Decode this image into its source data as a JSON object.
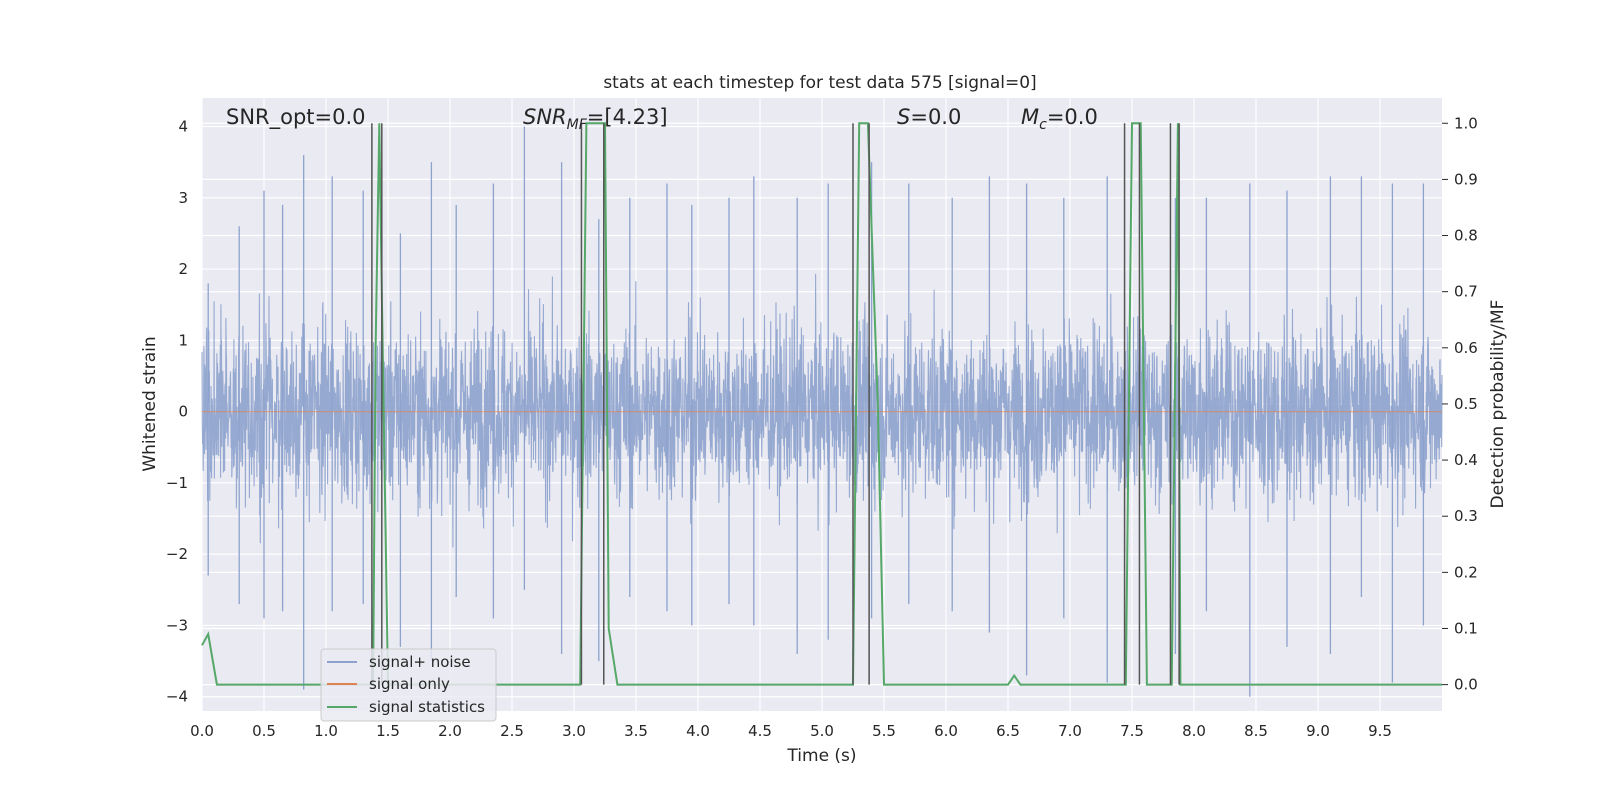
{
  "chart_data": {
    "type": "line",
    "title": "stats at each timestep for test data 575 [signal=0]",
    "xlabel": "Time (s)",
    "ylabel": "Whitened strain",
    "ylabel_right": "Detection probability/MF",
    "xlim": [
      0.0,
      10.0
    ],
    "ylim": [
      -4.2,
      4.4
    ],
    "ylim_right": [
      -0.047,
      1.045
    ],
    "x_ticks": [
      "0.0",
      "0.5",
      "1.0",
      "1.5",
      "2.0",
      "2.5",
      "3.0",
      "3.5",
      "4.0",
      "4.5",
      "5.0",
      "5.5",
      "6.0",
      "6.5",
      "7.0",
      "7.5",
      "8.0",
      "8.5",
      "9.0",
      "9.5"
    ],
    "y_ticks": [
      "4",
      "3",
      "2",
      "1",
      "0",
      "−1",
      "−2",
      "−3",
      "−4"
    ],
    "y_ticks_right": [
      "1.0",
      "0.9",
      "0.8",
      "0.7",
      "0.6",
      "0.5",
      "0.4",
      "0.3",
      "0.2",
      "0.1",
      "0.0"
    ],
    "grid": true,
    "legend_position": "lower-left",
    "annotations": {
      "snr_opt": "SNR_opt=0.0",
      "snr_mf_main": "SNR",
      "snr_mf_sub": "MF",
      "snr_mf_value": "=[4.23]",
      "s_main": "S",
      "s_value": "=0.0",
      "mc_main": "M",
      "mc_sub": "c",
      "mc_value": "=0.0"
    },
    "series": [
      {
        "name": "signal+ noise",
        "axis": "left",
        "color": "#8da2cd",
        "description_values": "dense whitened noise, roughly Gaussian, peaks near +4.0 and -3.9",
        "envelope_peaks": [
          [
            0.05,
            1.8,
            -2.3
          ],
          [
            0.3,
            2.6,
            -2.7
          ],
          [
            0.5,
            3.1,
            -2.9
          ],
          [
            0.65,
            2.9,
            -2.8
          ],
          [
            0.82,
            3.6,
            -3.9
          ],
          [
            1.05,
            3.3,
            -2.8
          ],
          [
            1.3,
            3.1,
            -2.7
          ],
          [
            1.6,
            2.5,
            -3.3
          ],
          [
            1.85,
            3.5,
            -3.5
          ],
          [
            2.05,
            2.9,
            -2.6
          ],
          [
            2.35,
            3.2,
            -2.9
          ],
          [
            2.6,
            4.0,
            -2.5
          ],
          [
            2.9,
            3.5,
            -3.4
          ],
          [
            3.2,
            2.7,
            -3.5
          ],
          [
            3.45,
            3.0,
            -2.6
          ],
          [
            3.75,
            3.2,
            -2.8
          ],
          [
            3.95,
            2.9,
            -3.0
          ],
          [
            4.25,
            3.0,
            -2.7
          ],
          [
            4.45,
            3.3,
            -3.0
          ],
          [
            4.8,
            3.0,
            -3.4
          ],
          [
            5.05,
            3.2,
            -3.2
          ],
          [
            5.4,
            3.5,
            -2.9
          ],
          [
            5.7,
            3.2,
            -2.7
          ],
          [
            6.05,
            3.0,
            -2.8
          ],
          [
            6.35,
            3.3,
            -3.1
          ],
          [
            6.65,
            3.2,
            -3.7
          ],
          [
            6.95,
            3.0,
            -2.9
          ],
          [
            7.3,
            3.3,
            -3.8
          ],
          [
            7.85,
            3.0,
            -3.4
          ],
          [
            8.1,
            3.0,
            -2.8
          ],
          [
            8.45,
            3.2,
            -4.0
          ],
          [
            8.75,
            3.1,
            -3.3
          ],
          [
            9.1,
            3.3,
            -3.4
          ],
          [
            9.35,
            3.3,
            -2.6
          ],
          [
            9.6,
            3.2,
            -3.8
          ],
          [
            9.85,
            3.2,
            -3.0
          ]
        ]
      },
      {
        "name": "signal only",
        "axis": "left",
        "color": "#dd8452",
        "x": [
          0.0,
          10.0
        ],
        "y": [
          0.0,
          0.0
        ]
      },
      {
        "name": "signal statistics",
        "axis": "right",
        "color": "#55a868",
        "x": [
          0.0,
          0.05,
          0.12,
          1.38,
          1.4,
          1.43,
          1.45,
          1.5,
          3.05,
          3.1,
          3.13,
          3.25,
          3.28,
          3.35,
          5.25,
          5.3,
          5.37,
          5.45,
          5.5,
          6.5,
          6.55,
          6.6,
          7.45,
          7.5,
          7.57,
          7.62,
          7.82,
          7.87,
          7.89,
          7.93,
          10.0
        ],
        "y": [
          0.07,
          0.09,
          0.0,
          0.0,
          0.6,
          1.0,
          0.7,
          0.0,
          0.0,
          1.0,
          1.0,
          1.0,
          0.1,
          0.0,
          0.0,
          1.0,
          1.0,
          0.5,
          0.0,
          0.0,
          0.016,
          0.0,
          0.0,
          1.0,
          1.0,
          0.0,
          0.0,
          1.0,
          0.0,
          0.0,
          0.0
        ]
      }
    ],
    "vertical_markers": {
      "color": "#555555",
      "x": [
        1.37,
        1.45,
        3.06,
        3.24,
        5.25,
        5.38,
        7.44,
        7.56,
        7.81,
        7.88
      ]
    }
  },
  "legend": {
    "items": [
      {
        "label": "signal+ noise",
        "color": "#8da2cd"
      },
      {
        "label": "signal only",
        "color": "#dd8452"
      },
      {
        "label": "signal statistics",
        "color": "#55a868"
      }
    ]
  }
}
